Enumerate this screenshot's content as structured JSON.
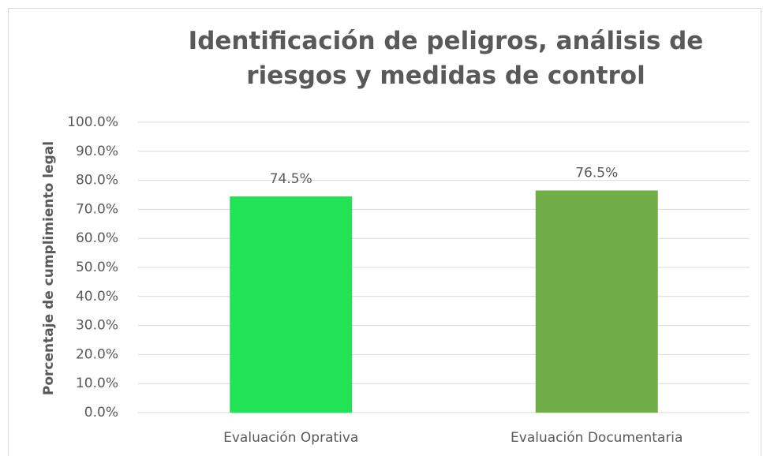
{
  "chart_data": {
    "type": "bar",
    "title": "Identificación de peligros, análisis de riesgos y medidas de control",
    "y_label": "Porcentaje de cumplimiento legal",
    "categories": [
      "Evaluación Oprativa",
      "Evaluación Documentaria"
    ],
    "values": [
      74.5,
      76.5
    ],
    "value_labels": [
      "74.5%",
      "76.5%"
    ],
    "colors": [
      "#22e355",
      "#70ad47"
    ],
    "ylim": [
      0,
      100
    ],
    "yticks": [
      {
        "value": 0,
        "label": "0.0%"
      },
      {
        "value": 10,
        "label": "10.0%"
      },
      {
        "value": 20,
        "label": "20.0%"
      },
      {
        "value": 30,
        "label": "30.0%"
      },
      {
        "value": 40,
        "label": "40.0%"
      },
      {
        "value": 50,
        "label": "50.0%"
      },
      {
        "value": 60,
        "label": "60.0%"
      },
      {
        "value": 70,
        "label": "70.0%"
      },
      {
        "value": 80,
        "label": "80.0%"
      },
      {
        "value": 90,
        "label": "90.0%"
      },
      {
        "value": 100,
        "label": "100.0%"
      }
    ],
    "grid": true
  }
}
